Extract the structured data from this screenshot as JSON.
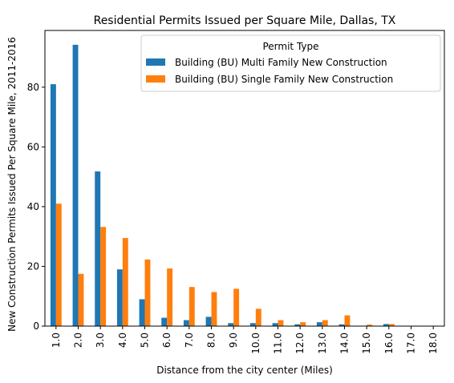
{
  "chart_data": {
    "type": "bar",
    "title": "Residential Permits Issued per Square Mile, Dallas, TX",
    "xlabel": "Distance from the city center (Miles)",
    "ylabel": "New Construction Permits Issued Per Square Mile, 2011-2016",
    "categories": [
      "1.0",
      "2.0",
      "3.0",
      "4.0",
      "5.0",
      "6.0",
      "7.0",
      "8.0",
      "9.0",
      "10.0",
      "11.0",
      "12.0",
      "13.0",
      "14.0",
      "15.0",
      "16.0",
      "17.0",
      "18.0"
    ],
    "ylim": [
      0,
      99
    ],
    "yticks": [
      0,
      20,
      40,
      60,
      80
    ],
    "legend": {
      "title": "Permit Type",
      "placement": "top-right"
    },
    "series": [
      {
        "name": "Building (BU) Multi Family  New Construction",
        "color": "#1f77b4",
        "values": [
          81,
          94.2,
          51.8,
          19,
          9,
          2.8,
          2,
          3.1,
          1,
          1,
          1,
          0.6,
          1.3,
          0.6,
          0,
          0.7,
          0,
          0
        ]
      },
      {
        "name": "Building (BU) Single Family  New Construction",
        "color": "#ff7f0e",
        "values": [
          41,
          17.5,
          33.2,
          29.5,
          22.3,
          19.3,
          13.1,
          11.4,
          12.5,
          5.8,
          2,
          1.3,
          2,
          3.6,
          0.5,
          0.7,
          0,
          0
        ]
      }
    ]
  }
}
